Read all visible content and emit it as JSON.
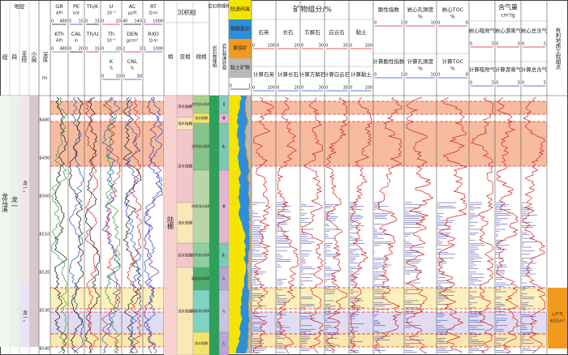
{
  "stratigraphy": {
    "title": "地层",
    "columns": [
      "组",
      "段",
      "亚段",
      "小层"
    ],
    "formation": "龙马溪",
    "member": "龙一",
    "submembers": [
      "龙一₂",
      "龙一₁"
    ]
  },
  "depth": {
    "title": "深度",
    "unit": "m",
    "labels": [
      5480,
      5490,
      5500,
      5510,
      5520,
      5530,
      5540
    ]
  },
  "log_tracks": [
    {
      "lines": [
        {
          "name": "GR",
          "unit": "API",
          "min": 0,
          "max": 480,
          "color": "#111111"
        },
        {
          "name": "KTh",
          "unit": "API",
          "min": 0,
          "max": 480,
          "color": "#2a9d3a"
        }
      ]
    },
    {
      "lines": [
        {
          "name": "PE",
          "unit": "b/e",
          "min": 5,
          "max": 15,
          "color": "#1f4fd1"
        },
        {
          "name": "CAL",
          "unit": "in",
          "min": 0,
          "max": 20,
          "color": "#111111"
        }
      ]
    },
    {
      "lines": [
        {
          "name": "Th/K",
          "min": 0,
          "max": 15,
          "color": "#111111"
        },
        {
          "name": "Th/U",
          "min": 0,
          "max": 15,
          "color": "#d62020"
        }
      ]
    },
    {
      "lines": [
        {
          "name": "U",
          "unit": "10⁻⁶",
          "min": 0,
          "max": 20,
          "color": "#d62020"
        },
        {
          "name": "Th",
          "unit": "10⁻⁶",
          "min": 0,
          "max": 20,
          "color": "#2a9d3a"
        },
        {
          "name": "K",
          "unit": "%",
          "min": 0,
          "max": 10,
          "color": "#1f4fd1"
        }
      ]
    },
    {
      "lines": [
        {
          "name": "AC",
          "unit": "μs/ft",
          "min": 40,
          "max": 140,
          "color": "#111111"
        },
        {
          "name": "DEN",
          "unit": "g/cm³",
          "min": 2,
          "max": 3,
          "color": "#d62020"
        },
        {
          "name": "CNL",
          "unit": "%",
          "min": 0,
          "max": 30,
          "color": "#1f4fd1"
        }
      ]
    },
    {
      "lines": [
        {
          "name": "RT",
          "unit": "Ω·m",
          "min": 1,
          "max": 1000,
          "color": "#6a1b9a"
        },
        {
          "name": "RXO",
          "unit": "Ω·m",
          "min": 1,
          "max": 1000,
          "color": "#1f4fd1"
        }
      ]
    }
  ],
  "facies": {
    "title": "沉积相",
    "columns": [
      "相",
      "亚相",
      "微相"
    ],
    "facies": "陆棚",
    "subfacies": [
      "深水陆棚",
      "浅水陆棚",
      "深水陆棚",
      "浅水陆棚",
      "深水陆棚",
      "浅水陆棚"
    ],
    "microfacies": [
      "含钙深水陆棚",
      "浅水陆棚",
      "含钙深水陆棚",
      "钙质浅水陆棚",
      "含钙深水陆棚",
      "富硅深水陆棚",
      "富硅深水陆棚",
      "浅水陆棚"
    ]
  },
  "rock_physics": {
    "title": "岩石物理相",
    "columns": [
      "岩石物理相",
      "岩石物理亚相"
    ],
    "classes": [
      "Ⅱ",
      "Ⅲ",
      "Ⅱ₂",
      "Ⅲ",
      "Ⅱ₁",
      "Ⅰ₁",
      "Ⅰ₂",
      "Ⅰ₁"
    ]
  },
  "mineral_stack": {
    "items": [
      {
        "name": "陆源碎屑",
        "color": "#f5e400"
      },
      {
        "name": "碳酸盐岩",
        "color": "#2e8fd8"
      },
      {
        "name": "黄铁矿",
        "color": "#f29a1e"
      },
      {
        "name": "黏土矿物",
        "color": "#b9b9b9"
      }
    ],
    "min": 0,
    "max": 1
  },
  "minerals": {
    "title": "矿物组分/%",
    "tracks": [
      {
        "core": "石英",
        "calc": "计算石英",
        "min": 0,
        "max": 100
      },
      {
        "core": "长石",
        "calc": "计算长石",
        "min": 0,
        "max": 20
      },
      {
        "core": "方解石",
        "calc": "计算方解石",
        "min": 0,
        "max": 30
      },
      {
        "core": "白云石",
        "calc": "计算白云石",
        "min": 0,
        "max": 35
      },
      {
        "core": "黏土",
        "calc": "计算黏土",
        "min": 0,
        "max": 100
      }
    ]
  },
  "single_tracks": [
    {
      "core": "脆性指数",
      "calc": "计算脆性指数",
      "min": 0,
      "max": 1
    },
    {
      "core": "岩心孔隙度",
      "calc": "计算孔隙度",
      "unit": "%",
      "min": 0,
      "max": 10
    },
    {
      "core": "岩心TOC",
      "calc": "计算TOC",
      "unit": "%",
      "min": 0,
      "max": 6
    }
  ],
  "gas": {
    "title": "含气量",
    "unit": "cm³/g",
    "tracks": [
      {
        "core": "岩心吸附气",
        "calc": "计算吸附气",
        "min": 0,
        "max": 5
      },
      {
        "core": "岩心游离气",
        "calc": "计算游离气",
        "min": 0,
        "max": 5
      },
      {
        "core": "岩心总含气",
        "calc": "计算总含气",
        "min": 0,
        "max": 5
      }
    ]
  },
  "sweet_spot": {
    "title": "有利地质工程甜点",
    "note": "Ⅰ₁产气",
    "note2": "43万m³"
  }
}
